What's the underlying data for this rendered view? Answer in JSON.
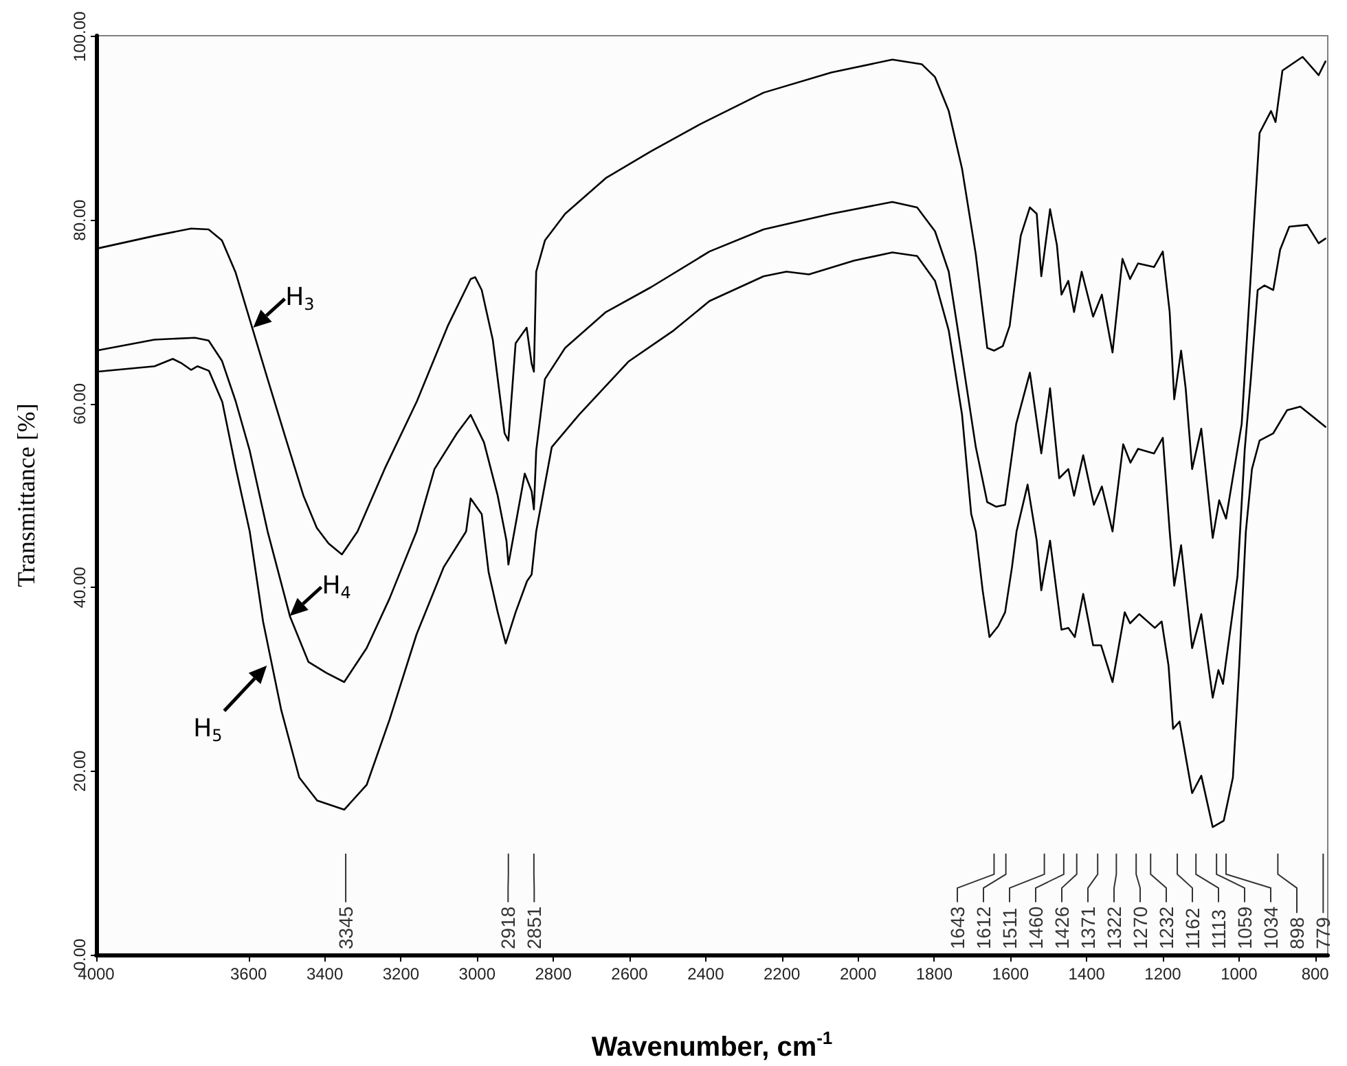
{
  "chart_data": {
    "type": "line",
    "xlabel": "Wavenumber, cm$^{-1}$",
    "ylabel": "Transmittance [%]",
    "xlim": [
      4000,
      767
    ],
    "xticks": [
      4000,
      3600,
      3400,
      3200,
      3000,
      2800,
      2600,
      2400,
      2200,
      2000,
      1800,
      1600,
      1400,
      1200,
      1000,
      800
    ],
    "ylim": [
      0,
      100.1
    ],
    "yticks": [
      {
        "value": 0,
        "label": "0.00"
      },
      {
        "value": 20,
        "label": "20.00"
      },
      {
        "value": 40,
        "label": "40.00"
      },
      {
        "value": 60,
        "label": "60.00"
      },
      {
        "value": 80,
        "label": "80.00"
      },
      {
        "value": 100,
        "label": "100.00"
      }
    ],
    "series": [
      {
        "color": "#000000",
        "x": [
          4000,
          3847,
          3751,
          3705,
          3670,
          3634,
          3592,
          3550,
          3503,
          3456,
          3421,
          3390,
          3355,
          3314,
          3243,
          3158,
          3077,
          3017,
          3005,
          2988,
          2959,
          2928,
          2918,
          2899,
          2870,
          2857,
          2851,
          2845,
          2822,
          2769,
          2662,
          2544,
          2413,
          2248,
          2070,
          1910,
          1833,
          1798,
          1762,
          1727,
          1691,
          1661,
          1643,
          1620,
          1602,
          1573,
          1549,
          1531,
          1519,
          1496,
          1478,
          1466,
          1448,
          1433,
          1413,
          1383,
          1360,
          1332,
          1306,
          1286,
          1265,
          1223,
          1200,
          1182,
          1170,
          1152,
          1140,
          1123,
          1099,
          1069,
          1052,
          1034,
          993,
          957,
          946,
          916,
          904,
          886,
          833,
          791,
          773
        ],
        "values": [
          76.9,
          78.3,
          79.1,
          79.0,
          77.8,
          74.3,
          68.5,
          62.7,
          56.3,
          50.0,
          46.5,
          44.8,
          43.6,
          46.1,
          52.9,
          60.3,
          68.5,
          73.6,
          73.8,
          72.4,
          67.0,
          56.8,
          56.0,
          66.6,
          68.3,
          64.4,
          63.5,
          74.4,
          77.8,
          80.7,
          84.6,
          87.5,
          90.5,
          93.9,
          96.1,
          97.5,
          97.0,
          95.6,
          91.9,
          85.6,
          76.3,
          66.1,
          65.8,
          66.3,
          68.5,
          78.3,
          81.4,
          80.7,
          73.9,
          81.2,
          77.3,
          71.9,
          73.4,
          70.0,
          74.4,
          69.5,
          71.9,
          65.6,
          75.8,
          73.6,
          75.3,
          74.9,
          76.6,
          70.0,
          60.5,
          65.8,
          61.7,
          52.9,
          57.3,
          45.4,
          49.5,
          47.5,
          57.8,
          82.2,
          89.5,
          91.9,
          90.7,
          96.3,
          97.8,
          95.8,
          97.3
        ]
      },
      {
        "color": "#000000",
        "x": [
          4000,
          3847,
          3741,
          3705,
          3670,
          3634,
          3597,
          3550,
          3491,
          3443,
          3396,
          3349,
          3290,
          3230,
          3159,
          3112,
          3053,
          3017,
          2982,
          2946,
          2923,
          2918,
          2875,
          2857,
          2851,
          2845,
          2822,
          2769,
          2662,
          2544,
          2390,
          2248,
          2070,
          1910,
          1845,
          1798,
          1762,
          1727,
          1691,
          1661,
          1638,
          1614,
          1585,
          1549,
          1519,
          1496,
          1472,
          1448,
          1433,
          1409,
          1381,
          1360,
          1332,
          1304,
          1285,
          1265,
          1223,
          1200,
          1182,
          1170,
          1152,
          1123,
          1099,
          1069,
          1054,
          1042,
          1004,
          985,
          969,
          951,
          933,
          910,
          892,
          868,
          821,
          791,
          773
        ],
        "values": [
          65.8,
          67.0,
          67.2,
          66.9,
          64.7,
          60.3,
          54.9,
          46.1,
          36.8,
          31.9,
          30.7,
          29.7,
          33.4,
          38.8,
          46.1,
          52.9,
          56.8,
          58.8,
          55.8,
          50.0,
          45.1,
          42.5,
          52.4,
          50.5,
          48.5,
          54.9,
          62.7,
          66.1,
          70.0,
          72.7,
          76.6,
          79.0,
          80.7,
          82.0,
          81.4,
          78.8,
          74.4,
          65.1,
          55.3,
          49.3,
          48.8,
          49.0,
          57.8,
          63.4,
          54.6,
          61.7,
          51.9,
          52.9,
          50.0,
          54.4,
          49.0,
          51.0,
          46.1,
          55.6,
          53.6,
          55.1,
          54.6,
          56.3,
          46.1,
          40.2,
          44.6,
          33.4,
          37.1,
          28.0,
          31.0,
          29.5,
          41.2,
          55.0,
          62.7,
          72.4,
          72.9,
          72.4,
          76.8,
          79.3,
          79.5,
          77.5,
          78.0
        ]
      },
      {
        "color": "#000000",
        "x": [
          4000,
          3847,
          3799,
          3775,
          3751,
          3734,
          3704,
          3669,
          3633,
          3597,
          3562,
          3514,
          3467,
          3420,
          3349,
          3290,
          3230,
          3159,
          3088,
          3029,
          3017,
          2988,
          2970,
          2946,
          2925,
          2899,
          2869,
          2857,
          2845,
          2804,
          2733,
          2603,
          2484,
          2390,
          2248,
          2188,
          2129,
          2011,
          1910,
          1845,
          1798,
          1762,
          1727,
          1703,
          1691,
          1673,
          1655,
          1632,
          1614,
          1596,
          1584,
          1555,
          1531,
          1519,
          1496,
          1466,
          1448,
          1431,
          1409,
          1383,
          1362,
          1332,
          1300,
          1286,
          1262,
          1221,
          1203,
          1185,
          1173,
          1156,
          1123,
          1099,
          1069,
          1040,
          1016,
          1000,
          982,
          966,
          946,
          910,
          874,
          839,
          803,
          773
        ],
        "values": [
          63.5,
          64.1,
          64.9,
          64.4,
          63.7,
          64.1,
          63.6,
          60.2,
          52.9,
          46.1,
          36.3,
          26.6,
          19.3,
          16.8,
          15.8,
          18.5,
          25.6,
          34.9,
          42.2,
          46.1,
          49.7,
          48.0,
          41.7,
          37.3,
          33.9,
          37.3,
          40.7,
          41.4,
          46.1,
          55.3,
          58.8,
          64.6,
          68.0,
          71.2,
          73.9,
          74.4,
          74.1,
          75.6,
          76.5,
          76.1,
          73.4,
          68.0,
          58.8,
          48.0,
          46.1,
          39.7,
          34.6,
          35.8,
          37.3,
          42.2,
          46.1,
          51.2,
          45.1,
          39.7,
          45.1,
          35.4,
          35.6,
          34.6,
          39.3,
          33.7,
          33.7,
          29.7,
          37.3,
          36.1,
          37.1,
          35.6,
          36.3,
          31.5,
          24.6,
          25.4,
          17.6,
          19.5,
          13.9,
          14.6,
          19.3,
          31.0,
          46.1,
          52.9,
          56.0,
          56.8,
          59.3,
          59.7,
          58.5,
          57.5
        ]
      }
    ],
    "annotations": [
      {
        "text": "H$_{3}$",
        "x": 3588,
        "y": 68.3
      },
      {
        "text": "H$_{4}$",
        "x": 3492,
        "y": 36.9
      },
      {
        "text": "H$_{5}$",
        "x": 3552,
        "y": 31.5
      },
      {
        "text": "3345",
        "x": 3345
      },
      {
        "text": "2918",
        "x": 2918
      },
      {
        "text": "2851",
        "x": 2851
      },
      {
        "text": "1643",
        "x": 1643
      },
      {
        "text": "1612",
        "x": 1612
      },
      {
        "text": "1511",
        "x": 1511
      },
      {
        "text": "1460",
        "x": 1460
      },
      {
        "text": "1426",
        "x": 1426
      },
      {
        "text": "1371",
        "x": 1371
      },
      {
        "text": "1322",
        "x": 1322
      },
      {
        "text": "1270",
        "x": 1270
      },
      {
        "text": "1232",
        "x": 1232
      },
      {
        "text": "1162",
        "x": 1162
      },
      {
        "text": "1113",
        "x": 1113
      },
      {
        "text": "1059",
        "x": 1059
      },
      {
        "text": "1034",
        "x": 1034
      },
      {
        "text": "898",
        "x": 898
      },
      {
        "text": "779",
        "x": 779
      }
    ]
  }
}
